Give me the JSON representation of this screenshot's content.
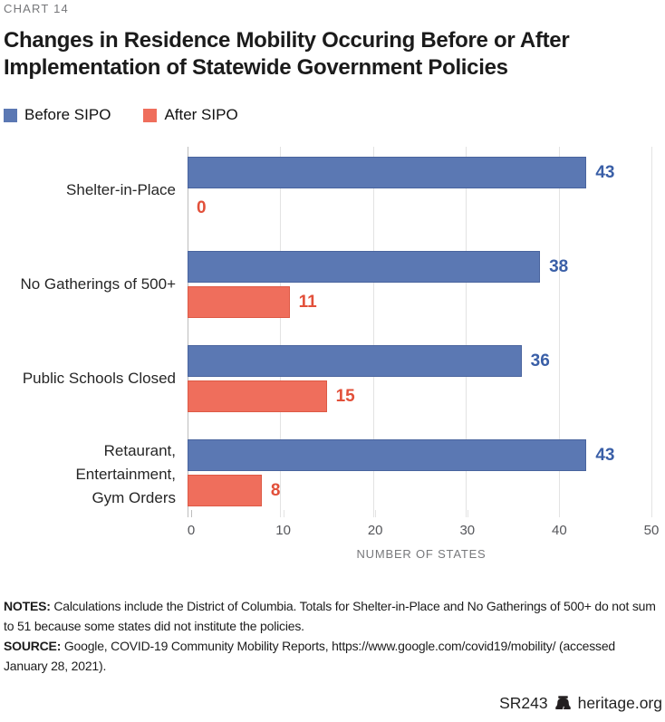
{
  "header": {
    "chart_number": "CHART 14",
    "title_line1": "Changes in Residence Mobility Occuring Before or After",
    "title_line2": "Implementation of Statewide Government Policies"
  },
  "chart_data": {
    "type": "bar",
    "orientation": "horizontal",
    "categories": [
      [
        "Shelter-in-Place"
      ],
      [
        "No Gatherings of 500+"
      ],
      [
        "Public Schools Closed"
      ],
      [
        "Retaurant,",
        "Entertainment,",
        "Gym Orders"
      ]
    ],
    "series": [
      {
        "name": "Before SIPO",
        "color": "#5b78b3",
        "edge_color": "#49649e",
        "label_color": "#3a5fa7",
        "values": [
          43,
          38,
          36,
          43
        ]
      },
      {
        "name": "After SIPO",
        "color": "#ef6e5c",
        "edge_color": "#dd5945",
        "label_color": "#e2503a",
        "values": [
          0,
          11,
          15,
          8
        ]
      }
    ],
    "xlabel": "NUMBER OF STATES",
    "xlim": [
      0,
      50
    ],
    "xticks": [
      "0",
      "10",
      "20",
      "30",
      "40",
      "50"
    ],
    "grid": true,
    "legend_position": "top-left",
    "gridline_color": "#e3e3e3",
    "axis_line_color": "#bdbdbd"
  },
  "notes": {
    "notes_label": "NOTES:",
    "notes_text": " Calculations include the District of Columbia. Totals for Shelter-in-Place and No Gatherings of 500+ do not sum to 51 because some states did not institute the policies.",
    "source_label": "SOURCE:",
    "source_text": " Google, COVID-19 Community Mobility Reports, https://www.google.com/covid19/mobility/ (accessed January 28, 2021)."
  },
  "footer": {
    "report_id": "SR243",
    "site": "heritage.org"
  }
}
